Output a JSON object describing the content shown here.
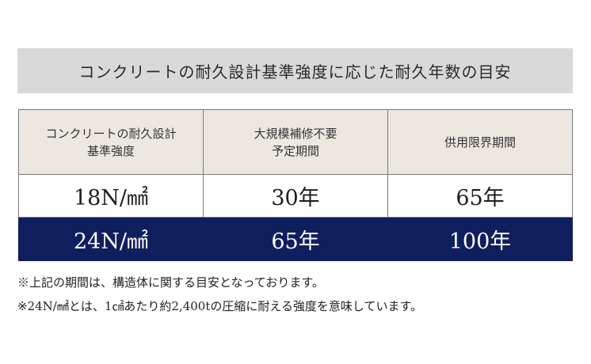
{
  "title": "コンクリートの耐久設計基準強度に応じた耐久年数の目安",
  "table": {
    "headers": [
      "コンクリートの耐久設計\n基準強度",
      "大規模補修不要\n予定期間",
      "供用限界期間"
    ],
    "rows": [
      [
        "18N/㎟",
        "30年",
        "65年"
      ],
      [
        "24N/㎟",
        "65年",
        "100年"
      ]
    ]
  },
  "notes": [
    "※上記の期間は、構造体に関する目安となっております。",
    "※24N/㎟とは、1㎠あたり約2,400tの圧縮に耐える強度を意味しています。"
  ],
  "colors": {
    "title_bg": "#d9d9d9",
    "header_bg": "#ece8e0",
    "highlight_row_bg": "#0f1f5e"
  }
}
